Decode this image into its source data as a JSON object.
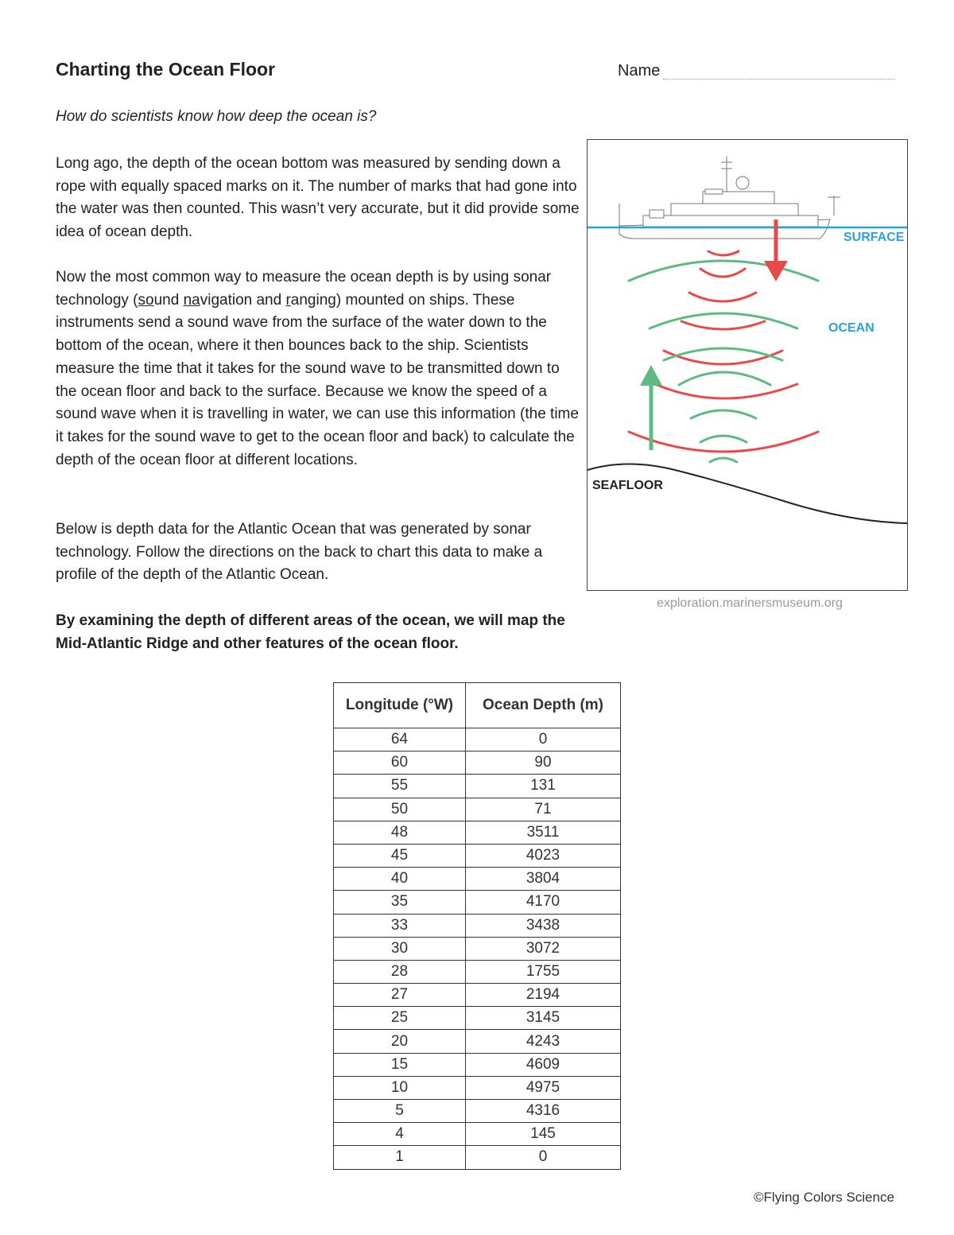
{
  "header": {
    "title": "Charting the Ocean Floor",
    "name_label": "Name"
  },
  "question": "How do scientists know how deep the ocean is?",
  "paragraphs": {
    "p1": "Long ago, the depth of the ocean bottom was measured by sending down a rope with equally spaced marks on it.  The number of marks that had gone into the water was then counted.  This wasn’t very accurate, but it did provide some idea of ocean depth.",
    "p2_a": "Now the most common way to measure the ocean depth is by using sonar technology (",
    "p2_so": "so",
    "p2_und": "und ",
    "p2_na": "na",
    "p2_vig": "vigation and ",
    "p2_r": "r",
    "p2_anging": "anging",
    "p2_b": ") mounted on ships.  These instruments send a sound wave from the surface of the water down to the bottom of the ocean, where it then bounces back to the ship.  Scientists measure the time that it takes for the sound wave to be transmitted down to the ocean floor and back to the surface.  Because we know the speed of a sound wave when it is travelling in water, we can use this information (the time it takes for the sound wave to get to the ocean floor and back) to calculate the depth of the ocean floor at different locations.",
    "p3": "Below is depth data for the Atlantic Ocean that was generated by sonar technology.  Follow the directions on the back to chart this data to make a profile of the depth of the Atlantic Ocean.",
    "p4": "By examining the depth of different areas of the ocean, we will map the Mid-Atlantic Ridge and other features of the ocean floor."
  },
  "diagram": {
    "surface": "SURFACE",
    "ocean": "OCEAN",
    "seafloor": "SEAFLOOR",
    "credit": "exploration.marinersmuseum.org",
    "colors": {
      "surface": "#29a3dc",
      "down_wave": "#e84a4a",
      "up_wave": "#5dbb82"
    }
  },
  "table": {
    "headers": [
      "Longitude (°W)",
      "Ocean Depth (m)"
    ],
    "rows": [
      [
        "64",
        "0"
      ],
      [
        "60",
        "90"
      ],
      [
        "55",
        "131"
      ],
      [
        "50",
        "71"
      ],
      [
        "48",
        "3511"
      ],
      [
        "45",
        "4023"
      ],
      [
        "40",
        "3804"
      ],
      [
        "35",
        "4170"
      ],
      [
        "33",
        "3438"
      ],
      [
        "30",
        "3072"
      ],
      [
        "28",
        "1755"
      ],
      [
        "27",
        "2194"
      ],
      [
        "25",
        "3145"
      ],
      [
        "20",
        "4243"
      ],
      [
        "15",
        "4609"
      ],
      [
        "10",
        "4975"
      ],
      [
        "5",
        "4316"
      ],
      [
        "4",
        "145"
      ],
      [
        "1",
        "0"
      ]
    ]
  },
  "footer": {
    "copyright": "©Flying Colors Science"
  }
}
